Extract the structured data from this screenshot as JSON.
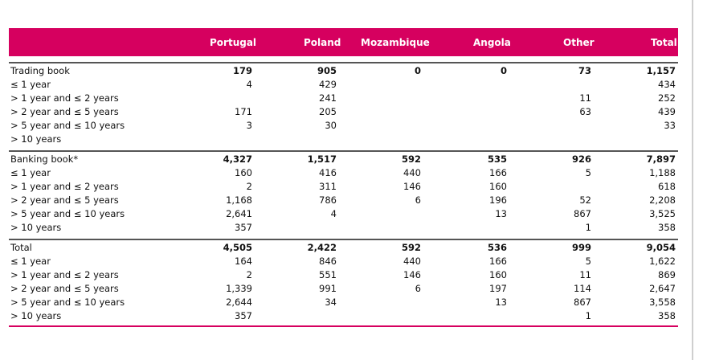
{
  "columns": [
    "Portugal",
    "Poland",
    "Mozambique",
    "Angola",
    "Other",
    "Total"
  ],
  "sections": [
    {
      "rows": [
        {
          "label": "Trading book",
          "values": [
            "179",
            "905",
            "0",
            "0",
            "73",
            "1,157"
          ],
          "bold": true
        },
        {
          "label": "≤ 1 year",
          "values": [
            "4",
            "429",
            "",
            "",
            "",
            "434"
          ]
        },
        {
          "label": "> 1 year and ≤ 2 years",
          "values": [
            "",
            "241",
            "",
            "",
            "11",
            "252"
          ]
        },
        {
          "label": "> 2 year and ≤ 5 years",
          "values": [
            "171",
            "205",
            "",
            "",
            "63",
            "439"
          ]
        },
        {
          "label": "> 5 year and ≤ 10 years",
          "values": [
            "3",
            "30",
            "",
            "",
            "",
            "33"
          ]
        },
        {
          "label": "> 10 years",
          "values": [
            "",
            "",
            "",
            "",
            "",
            ""
          ]
        }
      ]
    },
    {
      "rows": [
        {
          "label": "Banking book*",
          "values": [
            "4,327",
            "1,517",
            "592",
            "535",
            "926",
            "7,897"
          ],
          "bold": true
        },
        {
          "label": "≤ 1 year",
          "values": [
            "160",
            "416",
            "440",
            "166",
            "5",
            "1,188"
          ]
        },
        {
          "label": "> 1 year and ≤ 2 years",
          "values": [
            "2",
            "311",
            "146",
            "160",
            "",
            "618"
          ]
        },
        {
          "label": "> 2 year and ≤ 5 years",
          "values": [
            "1,168",
            "786",
            "6",
            "196",
            "52",
            "2,208"
          ]
        },
        {
          "label": "> 5 year and ≤ 10 years",
          "values": [
            "2,641",
            "4",
            "",
            "13",
            "867",
            "3,525"
          ]
        },
        {
          "label": "> 10 years",
          "values": [
            "357",
            "",
            "",
            "",
            "1",
            "358"
          ]
        }
      ]
    },
    {
      "rows": [
        {
          "label": "Total",
          "values": [
            "4,505",
            "2,422",
            "592",
            "536",
            "999",
            "9,054"
          ],
          "bold": true
        },
        {
          "label": "≤ 1 year",
          "values": [
            "164",
            "846",
            "440",
            "166",
            "5",
            "1,622"
          ]
        },
        {
          "label": "> 1 year and ≤ 2 years",
          "values": [
            "2",
            "551",
            "146",
            "160",
            "11",
            "869"
          ]
        },
        {
          "label": "> 2 year and ≤ 5 years",
          "values": [
            "1,339",
            "991",
            "6",
            "197",
            "114",
            "2,647"
          ]
        },
        {
          "label": "> 5 year and ≤ 10 years",
          "values": [
            "2,644",
            "34",
            "",
            "13",
            "867",
            "3,558"
          ]
        },
        {
          "label": "> 10 years",
          "values": [
            "357",
            "",
            "",
            "",
            "1",
            "358"
          ]
        }
      ]
    }
  ],
  "colors": {
    "header_bg": "#d6005f",
    "header_text": "#ffffff",
    "rule": "#555555"
  }
}
